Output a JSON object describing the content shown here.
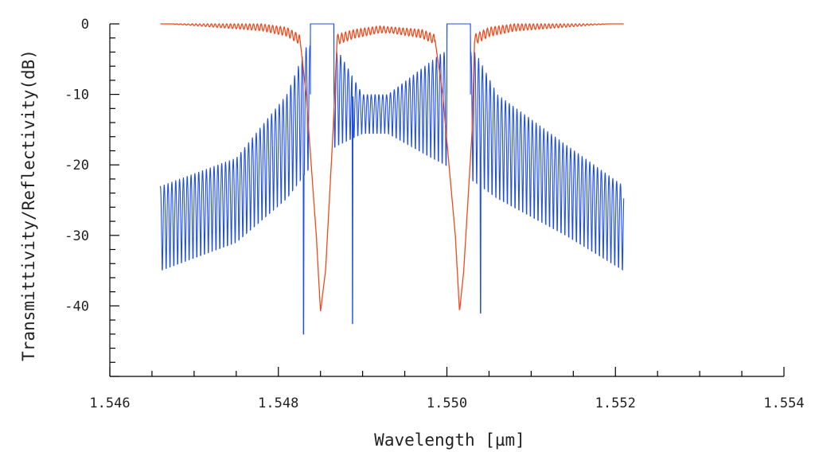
{
  "chart_data": {
    "type": "line",
    "title": "",
    "xlabel": "Wavelength [µm]",
    "ylabel": "Transmittivity/Reflectivity(dB)",
    "xlim": [
      1.546,
      1.554
    ],
    "ylim": [
      -50,
      0
    ],
    "x_ticks": [
      "1.546",
      "1.548",
      "1.550",
      "1.552",
      "1.554"
    ],
    "x_tick_values": [
      1.546,
      1.548,
      1.55,
      1.552,
      1.554
    ],
    "y_ticks": [
      "0",
      "-10",
      "-20",
      "-30",
      "-40"
    ],
    "y_tick_values": [
      0,
      -10,
      -20,
      -30,
      -40
    ],
    "grid": false,
    "legend": "none",
    "series": [
      {
        "color": "#ee4a1e",
        "x_range": [
          1.5466,
          1.5521
        ],
        "description_points": [
          [
            1.5466,
            0
          ],
          [
            1.5478,
            0
          ],
          [
            1.5481,
            -0.5
          ],
          [
            1.54825,
            -1.5
          ],
          [
            1.54833,
            -10
          ],
          [
            1.54845,
            -30
          ],
          [
            1.5485,
            -40.8
          ],
          [
            1.54856,
            -35
          ],
          [
            1.54865,
            -15
          ],
          [
            1.5487,
            -1.5
          ],
          [
            1.5489,
            -0.8
          ],
          [
            1.5492,
            -0.3
          ],
          [
            1.5497,
            -0.8
          ],
          [
            1.54985,
            -1.5
          ],
          [
            1.54995,
            -10
          ],
          [
            1.5501,
            -30
          ],
          [
            1.55015,
            -40.8
          ],
          [
            1.5502,
            -35
          ],
          [
            1.5503,
            -15
          ],
          [
            1.55033,
            -1.5
          ],
          [
            1.5505,
            -0.5
          ],
          [
            1.5508,
            0
          ],
          [
            1.5521,
            0
          ]
        ]
      },
      {
        "color": "#1f4fe0",
        "x_range": [
          1.5466,
          1.5521
        ],
        "stopbands": [
          [
            1.54838,
            1.54866
          ],
          [
            1.55,
            1.55028
          ]
        ],
        "stopband_level": 0,
        "sidelobe_envelope_top": [
          [
            1.5466,
            -23
          ],
          [
            1.5475,
            -19
          ],
          [
            1.5481,
            -10
          ],
          [
            1.54834,
            -3
          ],
          [
            1.54872,
            -4
          ],
          [
            1.549,
            -10
          ],
          [
            1.5493,
            -10
          ],
          [
            1.54995,
            -4
          ],
          [
            1.55034,
            -4
          ],
          [
            1.5506,
            -10
          ],
          [
            1.5514,
            -17
          ],
          [
            1.5521,
            -23
          ]
        ],
        "sidelobe_envelope_bottom": [
          [
            1.5466,
            -36
          ],
          [
            1.5475,
            -32
          ],
          [
            1.5481,
            -26
          ],
          [
            1.5485,
            -20
          ],
          [
            1.549,
            -16
          ],
          [
            1.5493,
            -16
          ],
          [
            1.5498,
            -20
          ],
          [
            1.5506,
            -26
          ],
          [
            1.5514,
            -31
          ],
          [
            1.5521,
            -36
          ]
        ],
        "deep_nulls": [
          [
            1.5483,
            -44
          ],
          [
            1.54888,
            -42.5
          ],
          [
            1.5504,
            -41
          ]
        ]
      }
    ]
  }
}
